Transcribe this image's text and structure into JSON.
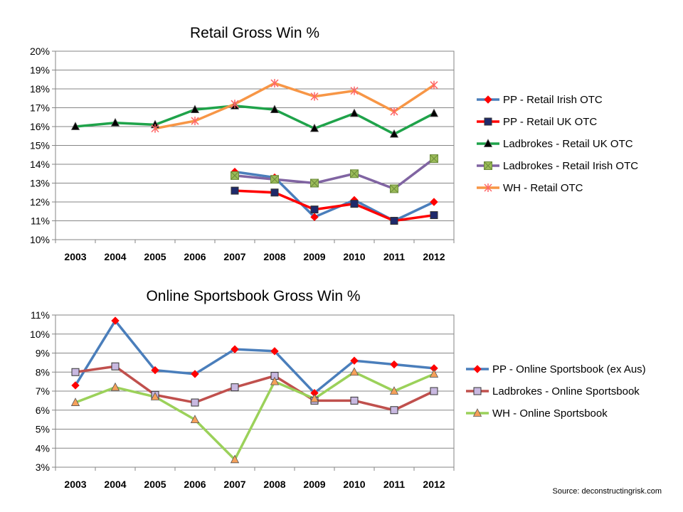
{
  "source_label": "Source: deconstructingrisk.com",
  "chart_data": [
    {
      "type": "line",
      "title": "Retail Gross Win %",
      "categories": [
        "2003",
        "2004",
        "2005",
        "2006",
        "2007",
        "2008",
        "2009",
        "2010",
        "2011",
        "2012"
      ],
      "ylim": [
        10,
        20
      ],
      "yticks": [
        "10%",
        "11%",
        "12%",
        "13%",
        "14%",
        "15%",
        "16%",
        "17%",
        "18%",
        "19%",
        "20%"
      ],
      "grid": true,
      "legend_position": "right",
      "series": [
        {
          "name": "PP - Retail Irish OTC",
          "color": "#4a7ebb",
          "marker": "diamond",
          "marker_color": "#ff0000",
          "values": [
            null,
            null,
            null,
            null,
            13.6,
            13.3,
            11.2,
            12.1,
            11.0,
            12.0
          ]
        },
        {
          "name": "PP - Retail UK OTC",
          "color": "#ff0000",
          "marker": "square",
          "marker_color": "#1f2a6b",
          "values": [
            null,
            null,
            null,
            null,
            12.6,
            12.5,
            11.6,
            11.9,
            11.0,
            11.3
          ]
        },
        {
          "name": "Ladbrokes - Retail UK OTC",
          "color": "#1fa34a",
          "marker": "triangle",
          "marker_color": "#000000",
          "values": [
            16.0,
            16.2,
            16.1,
            16.9,
            17.1,
            16.9,
            15.9,
            16.7,
            15.6,
            16.7
          ]
        },
        {
          "name": "Ladbrokes - Retail Irish OTC",
          "color": "#8064a2",
          "marker": "squarex",
          "marker_color": "#9bbb59",
          "values": [
            null,
            null,
            null,
            null,
            13.4,
            13.2,
            13.0,
            13.5,
            12.7,
            14.3
          ]
        },
        {
          "name": "WH - Retail OTC",
          "color": "#f79646",
          "marker": "star",
          "marker_color": "#ff6666",
          "values": [
            null,
            null,
            15.9,
            16.3,
            17.2,
            18.3,
            17.6,
            17.9,
            16.8,
            18.2
          ]
        }
      ]
    },
    {
      "type": "line",
      "title": "Online Sportsbook Gross Win %",
      "categories": [
        "2003",
        "2004",
        "2005",
        "2006",
        "2007",
        "2008",
        "2009",
        "2010",
        "2011",
        "2012"
      ],
      "ylim": [
        3,
        11
      ],
      "yticks": [
        "3%",
        "4%",
        "5%",
        "6%",
        "7%",
        "8%",
        "9%",
        "10%",
        "11%"
      ],
      "grid": true,
      "legend_position": "right",
      "series": [
        {
          "name": "PP - Online Sportsbook (ex Aus)",
          "color": "#4a7ebb",
          "marker": "diamond",
          "marker_color": "#ff0000",
          "values": [
            7.3,
            10.7,
            8.1,
            7.9,
            9.2,
            9.1,
            6.9,
            8.6,
            8.4,
            8.2
          ]
        },
        {
          "name": "Ladbrokes - Online Sportsbook",
          "color": "#c0504d",
          "marker": "square",
          "marker_color": "#c8b8e0",
          "values": [
            8.0,
            8.3,
            6.8,
            6.4,
            7.2,
            7.8,
            6.5,
            6.5,
            6.0,
            7.0
          ]
        },
        {
          "name": "WH - Online Sportsbook",
          "color": "#9bd15a",
          "marker": "triangle",
          "marker_color": "#f5a05a",
          "values": [
            6.4,
            7.2,
            6.7,
            5.5,
            3.4,
            7.5,
            6.6,
            8.0,
            7.0,
            7.9
          ]
        }
      ]
    }
  ]
}
